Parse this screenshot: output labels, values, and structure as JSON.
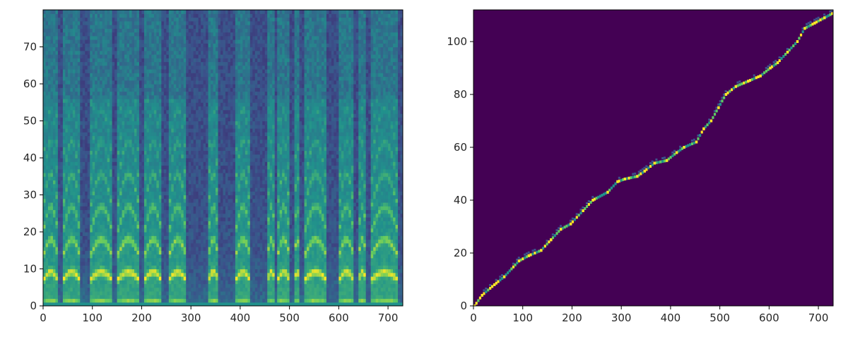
{
  "chart_data": [
    {
      "type": "heatmap",
      "title": "",
      "xlabel": "",
      "ylabel": "",
      "xlim": [
        0,
        730
      ],
      "ylim": [
        0,
        80
      ],
      "x_ticks": [
        "0",
        "100",
        "200",
        "300",
        "400",
        "500",
        "600",
        "700"
      ],
      "y_ticks": [
        "0",
        "10",
        "20",
        "30",
        "40",
        "50",
        "60",
        "70"
      ],
      "colormap": "viridis",
      "description_of_values": "mel spectrogram; bright bands at low bins in voiced segments",
      "voiced_segments": [
        [
          0,
          30
        ],
        [
          40,
          75
        ],
        [
          95,
          140
        ],
        [
          150,
          195
        ],
        [
          205,
          240
        ],
        [
          255,
          290
        ],
        [
          335,
          355
        ],
        [
          390,
          420
        ],
        [
          455,
          470
        ],
        [
          475,
          500
        ],
        [
          510,
          520
        ],
        [
          530,
          575
        ],
        [
          600,
          630
        ],
        [
          640,
          655
        ],
        [
          665,
          720
        ]
      ]
    },
    {
      "type": "heatmap",
      "title": "",
      "xlabel": "",
      "ylabel": "",
      "xlim": [
        0,
        730
      ],
      "ylim": [
        0,
        112
      ],
      "x_ticks": [
        "0",
        "100",
        "200",
        "300",
        "400",
        "500",
        "600",
        "700"
      ],
      "y_ticks": [
        "0",
        "20",
        "40",
        "60",
        "80",
        "100"
      ],
      "colormap": "viridis",
      "background_color": "#440154",
      "alignment_path": [
        {
          "x": 0,
          "y": 0
        },
        {
          "x": 15,
          "y": 4
        },
        {
          "x": 40,
          "y": 8
        },
        {
          "x": 60,
          "y": 11
        },
        {
          "x": 90,
          "y": 17
        },
        {
          "x": 110,
          "y": 19
        },
        {
          "x": 135,
          "y": 21
        },
        {
          "x": 155,
          "y": 25
        },
        {
          "x": 175,
          "y": 29
        },
        {
          "x": 195,
          "y": 31
        },
        {
          "x": 220,
          "y": 36
        },
        {
          "x": 240,
          "y": 40
        },
        {
          "x": 270,
          "y": 43
        },
        {
          "x": 290,
          "y": 47
        },
        {
          "x": 305,
          "y": 48
        },
        {
          "x": 330,
          "y": 49
        },
        {
          "x": 345,
          "y": 51
        },
        {
          "x": 365,
          "y": 54
        },
        {
          "x": 390,
          "y": 55
        },
        {
          "x": 410,
          "y": 58
        },
        {
          "x": 425,
          "y": 60
        },
        {
          "x": 450,
          "y": 62
        },
        {
          "x": 465,
          "y": 67
        },
        {
          "x": 480,
          "y": 70
        },
        {
          "x": 495,
          "y": 75
        },
        {
          "x": 510,
          "y": 80
        },
        {
          "x": 530,
          "y": 83
        },
        {
          "x": 555,
          "y": 85
        },
        {
          "x": 580,
          "y": 87
        },
        {
          "x": 600,
          "y": 90
        },
        {
          "x": 615,
          "y": 92
        },
        {
          "x": 635,
          "y": 96
        },
        {
          "x": 655,
          "y": 100
        },
        {
          "x": 670,
          "y": 105
        },
        {
          "x": 690,
          "y": 107
        },
        {
          "x": 710,
          "y": 109
        },
        {
          "x": 730,
          "y": 111
        }
      ]
    }
  ]
}
